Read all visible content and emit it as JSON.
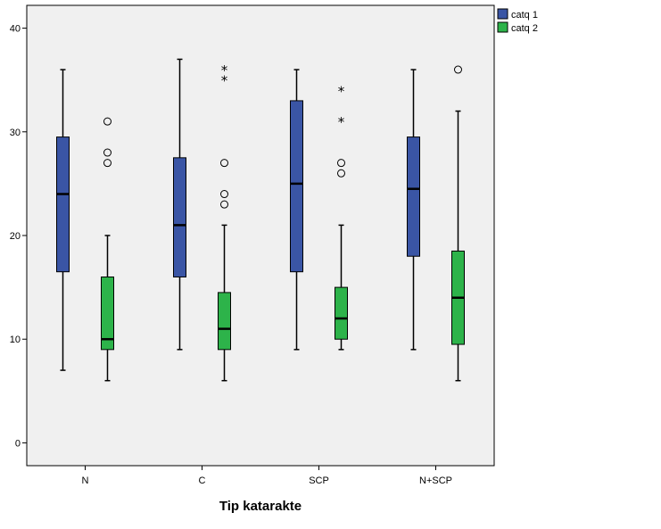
{
  "chart_data": {
    "type": "boxplot",
    "xlabel": "Tip katarakte",
    "ylabel": "",
    "ylim": [
      -2.2,
      42.2
    ],
    "yticks": [
      0,
      10,
      20,
      30,
      40
    ],
    "categories": [
      "N",
      "C",
      "SCP",
      "N+SCP"
    ],
    "legend_position": "right-top",
    "grid": false,
    "series": [
      {
        "name": "catq 1",
        "color": "#3A55A5",
        "boxes": [
          {
            "min": 7,
            "q1": 16.5,
            "median": 24,
            "q3": 29.5,
            "max": 36,
            "outliers": [],
            "extremes": []
          },
          {
            "min": 9,
            "q1": 16,
            "median": 21,
            "q3": 27.5,
            "max": 37,
            "outliers": [],
            "extremes": []
          },
          {
            "min": 9,
            "q1": 16.5,
            "median": 25,
            "q3": 33,
            "max": 36,
            "outliers": [],
            "extremes": []
          },
          {
            "min": 9,
            "q1": 18,
            "median": 24.5,
            "q3": 29.5,
            "max": 36,
            "outliers": [],
            "extremes": []
          }
        ]
      },
      {
        "name": "catq 2",
        "color": "#2DB34A",
        "boxes": [
          {
            "min": 6,
            "q1": 9,
            "median": 10,
            "q3": 16,
            "max": 20,
            "outliers": [
              27,
              28,
              31
            ],
            "extremes": []
          },
          {
            "min": 6,
            "q1": 9,
            "median": 11,
            "q3": 14.5,
            "max": 21,
            "outliers": [
              23,
              24,
              27
            ],
            "extremes": [
              35,
              36
            ]
          },
          {
            "min": 9,
            "q1": 10,
            "median": 12,
            "q3": 15,
            "max": 21,
            "outliers": [
              26,
              27
            ],
            "extremes": [
              31,
              34
            ]
          },
          {
            "min": 6,
            "q1": 9.5,
            "median": 14,
            "q3": 18.5,
            "max": 32,
            "outliers": [
              36
            ],
            "extremes": []
          }
        ]
      }
    ]
  }
}
